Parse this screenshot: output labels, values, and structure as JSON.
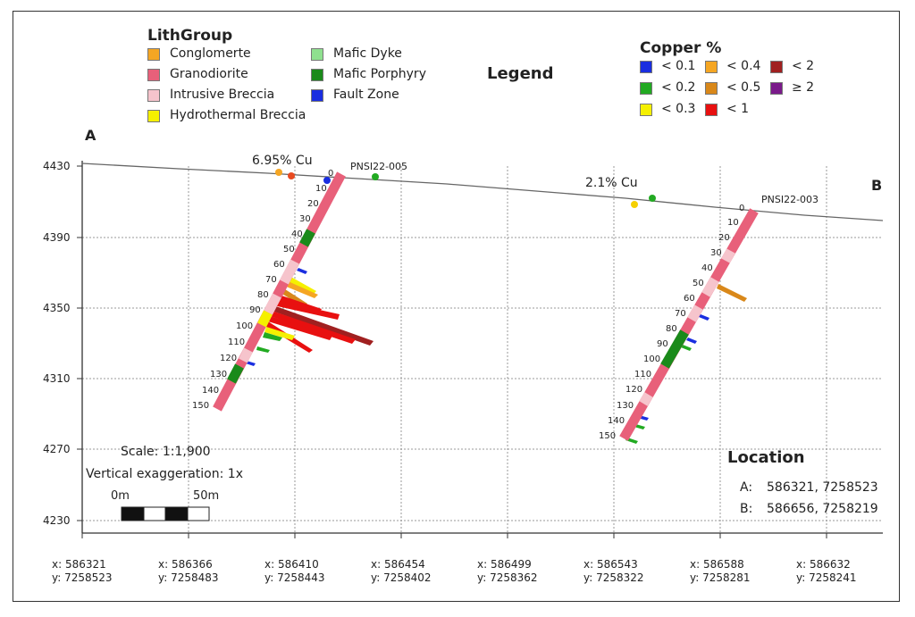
{
  "legend_title": "Legend",
  "lith": {
    "title": "LithGroup",
    "items": [
      {
        "label": "Conglomerte",
        "color": "#f5a623"
      },
      {
        "label": "Granodiorite",
        "color": "#e8607a"
      },
      {
        "label": "Intrusive Breccia",
        "color": "#f6c4cc"
      },
      {
        "label": "Hydrothermal Breccia",
        "color": "#f5f000"
      },
      {
        "label": "Mafic Dyke",
        "color": "#8fe08f"
      },
      {
        "label": "Mafic Porphyry",
        "color": "#1a8a1a"
      },
      {
        "label": "Fault Zone",
        "color": "#1a2ee0"
      }
    ]
  },
  "copper": {
    "title": "Copper %",
    "items": [
      {
        "label": "< 0.1",
        "color": "#1a2ee0"
      },
      {
        "label": "< 0.2",
        "color": "#22aa22"
      },
      {
        "label": "< 0.3",
        "color": "#f5f000"
      },
      {
        "label": "< 0.4",
        "color": "#f5a623"
      },
      {
        "label": "< 0.5",
        "color": "#d9881a"
      },
      {
        "label": "< 1",
        "color": "#e81010"
      },
      {
        "label": "< 2",
        "color": "#a02020"
      },
      {
        "label": "≥ 2",
        "color": "#7a1a8a"
      }
    ]
  },
  "section": {
    "start_label": "A",
    "end_label": "B"
  },
  "y_axis": {
    "ticks": [
      "4430",
      "4390",
      "4350",
      "4310",
      "4270",
      "4230"
    ]
  },
  "x_axis": {
    "ticks": [
      {
        "x": "x: 586321",
        "y": "y: 7258523"
      },
      {
        "x": "x: 586366",
        "y": "y: 7258483"
      },
      {
        "x": "x: 586410",
        "y": "y: 7258443"
      },
      {
        "x": "x: 586454",
        "y": "y: 7258402"
      },
      {
        "x": "x: 586499",
        "y": "y: 7258362"
      },
      {
        "x": "x: 586543",
        "y": "y: 7258322"
      },
      {
        "x": "x: 586588",
        "y": "y: 7258281"
      },
      {
        "x": "x: 586632",
        "y": "y: 7258241"
      }
    ]
  },
  "holes": [
    {
      "name": "PNSI22-005",
      "depths": [
        "0",
        "10",
        "20",
        "30",
        "40",
        "50",
        "60",
        "70",
        "80",
        "90",
        "100",
        "110",
        "120",
        "130",
        "140",
        "150"
      ]
    },
    {
      "name": "PNSI22-003",
      "depths": [
        "0",
        "10",
        "20",
        "30",
        "40",
        "50",
        "60",
        "70",
        "80",
        "90",
        "100",
        "110",
        "120",
        "130",
        "140",
        "150"
      ]
    }
  ],
  "annotations": {
    "cu1": "6.95% Cu",
    "cu2": "2.1% Cu"
  },
  "scale": {
    "scale_text": "Scale: 1:1,900",
    "vert_text": "Vertical exaggeration: 1x",
    "bar_start": "0m",
    "bar_end": "50m"
  },
  "location": {
    "title": "Location",
    "a_label": "A:",
    "a_value": "586321, 7258523",
    "b_label": "B:",
    "b_value": "586656, 7258219"
  }
}
